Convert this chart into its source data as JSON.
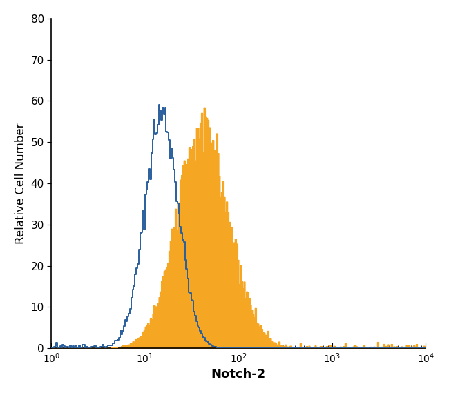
{
  "xlabel": "Notch-2",
  "ylabel": "Relative Cell Number",
  "xlim_log": [
    1,
    10000
  ],
  "ylim": [
    0,
    80
  ],
  "yticks": [
    0,
    10,
    20,
    30,
    40,
    50,
    60,
    70,
    80
  ],
  "blue_color": "#2a5f9e",
  "orange_color": "#f5a623",
  "blue_peak_log": 1.18,
  "blue_sigma_log": 0.18,
  "blue_peak_height": 57,
  "orange_peak_log": 1.62,
  "orange_sigma_log": 0.28,
  "orange_peak_height": 52,
  "n_bins": 300,
  "noise_seed_blue": 42,
  "noise_seed_orange": 99,
  "linewidth_blue": 1.4,
  "linewidth_orange": 0.8
}
